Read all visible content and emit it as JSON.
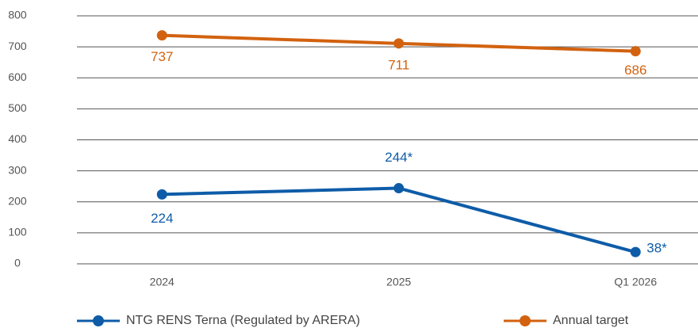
{
  "chart_data": {
    "type": "line",
    "categories": [
      "2024",
      "2025",
      "Q1 2026"
    ],
    "series": [
      {
        "name": "NTG RENS Terna (Regulated by ARERA)",
        "color": "#0e5ca8",
        "values": [
          224,
          244,
          38
        ],
        "value_labels": [
          "224",
          "244*",
          "38*"
        ]
      },
      {
        "name": "Annual target",
        "color": "#d2620f",
        "values": [
          737,
          711,
          686
        ]
      }
    ],
    "ylim": [
      0,
      800
    ],
    "yticks": [
      0,
      100,
      200,
      300,
      400,
      500,
      600,
      700,
      800
    ],
    "grid": true,
    "legend": "bottom"
  }
}
